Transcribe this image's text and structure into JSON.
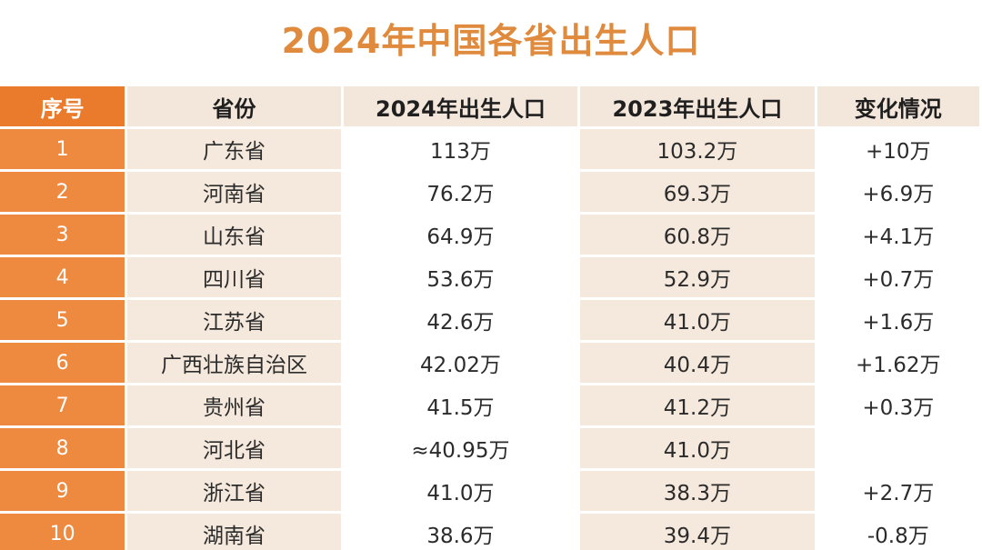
{
  "title": "2024年中国各省出生人口",
  "table": {
    "headers": [
      "序号",
      "省份",
      "2024年出生人口",
      "2023年出生人口",
      "变化情况"
    ],
    "rows": [
      [
        "1",
        "广东省",
        "113万",
        "103.2万",
        "+10万"
      ],
      [
        "2",
        "河南省",
        "76.2万",
        "69.3万",
        "+6.9万"
      ],
      [
        "3",
        "山东省",
        "64.9万",
        "60.8万",
        "+4.1万"
      ],
      [
        "4",
        "四川省",
        "53.6万",
        "52.9万",
        "+0.7万"
      ],
      [
        "5",
        "江苏省",
        "42.6万",
        "41.0万",
        "+1.6万"
      ],
      [
        "6",
        "广西壮族自治区",
        "42.02万",
        "40.4万",
        "+1.62万"
      ],
      [
        "7",
        "贵州省",
        "41.5万",
        "41.2万",
        "+0.3万"
      ],
      [
        "8",
        "河北省",
        "≈40.95万",
        "41.0万",
        ""
      ],
      [
        "9",
        "浙江省",
        "41.0万",
        "38.3万",
        "+2.7万"
      ],
      [
        "10",
        "湖南省",
        "38.6万",
        "39.4万",
        "-0.8万"
      ]
    ]
  },
  "colors": {
    "title": "#df8a3c",
    "index_column": "#ee8a40",
    "header_bg": "#f3e6da",
    "alt_column_bg": "#f5e8dc"
  }
}
